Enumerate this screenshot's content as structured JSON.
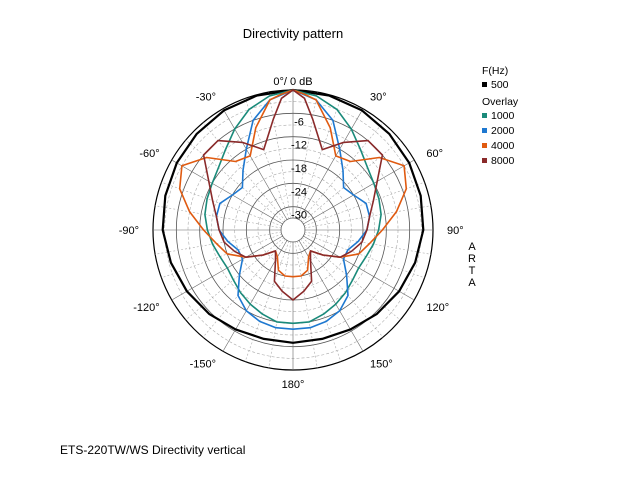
{
  "chart_data": {
    "type": "polar-line",
    "title": "Directivity pattern",
    "zero_label": "0°/ 0 dB",
    "radial_unit": "dB",
    "radial_ticks": [
      -6,
      -12,
      -18,
      -24,
      -30
    ],
    "radial_range": [
      -36,
      0
    ],
    "angle_labels": [
      {
        "angle": 0,
        "label": ""
      },
      {
        "angle": 30,
        "label": "30°"
      },
      {
        "angle": 60,
        "label": "60°"
      },
      {
        "angle": 90,
        "label": "90°"
      },
      {
        "angle": 120,
        "label": "120°"
      },
      {
        "angle": 150,
        "label": "150°"
      },
      {
        "angle": 180,
        "label": "180°"
      },
      {
        "angle": -150,
        "label": "-150°"
      },
      {
        "angle": -120,
        "label": "-120°"
      },
      {
        "angle": -90,
        "label": "-90°"
      },
      {
        "angle": -60,
        "label": "-60°"
      },
      {
        "angle": -30,
        "label": "-30°"
      }
    ],
    "side_letters": [
      "A",
      "R",
      "T",
      "A"
    ],
    "legend": {
      "header_main": "F(Hz)",
      "header_overlay": "Overlay",
      "placement": "top-right"
    },
    "series": [
      {
        "name": "500",
        "color": "#000000",
        "angles": [
          0,
          15,
          30,
          45,
          60,
          75,
          90,
          105,
          120,
          135,
          150,
          165,
          180
        ],
        "values": [
          0,
          -0.2,
          -0.5,
          -1,
          -1.5,
          -2,
          -2.5,
          -3.5,
          -4.5,
          -5.5,
          -6.5,
          -7,
          -7
        ]
      },
      {
        "name": "1000",
        "color": "#1a8a7a",
        "angles": [
          0,
          10,
          20,
          30,
          40,
          50,
          60,
          70,
          80,
          90,
          100,
          110,
          120,
          130,
          140,
          150,
          160,
          170,
          180
        ],
        "values": [
          0,
          -1,
          -3,
          -6,
          -9,
          -11,
          -12,
          -12.5,
          -13,
          -14,
          -15,
          -16,
          -16.5,
          -16,
          -15,
          -14,
          -13,
          -12,
          -12
        ]
      },
      {
        "name": "2000",
        "color": "#1e78d0",
        "angles": [
          0,
          10,
          20,
          30,
          40,
          50,
          60,
          70,
          80,
          90,
          100,
          110,
          120,
          130,
          140,
          150,
          160,
          170,
          180
        ],
        "values": [
          0,
          -2,
          -6,
          -12,
          -16,
          -19,
          -18,
          -16,
          -16,
          -17,
          -19,
          -21,
          -21,
          -18,
          -14,
          -12,
          -11,
          -10.5,
          -10.5
        ]
      },
      {
        "name": "4000",
        "color": "#e05a10",
        "angles": [
          0,
          5,
          10,
          20,
          30,
          40,
          50,
          60,
          70,
          80,
          90,
          100,
          110,
          120,
          130,
          140,
          150,
          160,
          170,
          180
        ],
        "values": [
          0,
          -1,
          -2,
          -8,
          -14,
          -13,
          -7,
          -3,
          -5,
          -9,
          -13,
          -16,
          -18,
          -22,
          -26,
          -29,
          -28,
          -25,
          -24,
          -24
        ]
      },
      {
        "name": "8000",
        "color": "#8a2a2a",
        "angles": [
          0,
          5,
          10,
          20,
          30,
          40,
          50,
          60,
          70,
          80,
          90,
          100,
          110,
          120,
          130,
          140,
          150,
          160,
          170,
          180
        ],
        "values": [
          0,
          -2,
          -7,
          -14,
          -10,
          -6,
          -6,
          -11,
          -14,
          -16,
          -17,
          -18,
          -20,
          -22,
          -26,
          -29,
          -27,
          -22,
          -20,
          -18
        ]
      }
    ]
  },
  "caption": "ETS-220TW/WS  Directivity vertical"
}
